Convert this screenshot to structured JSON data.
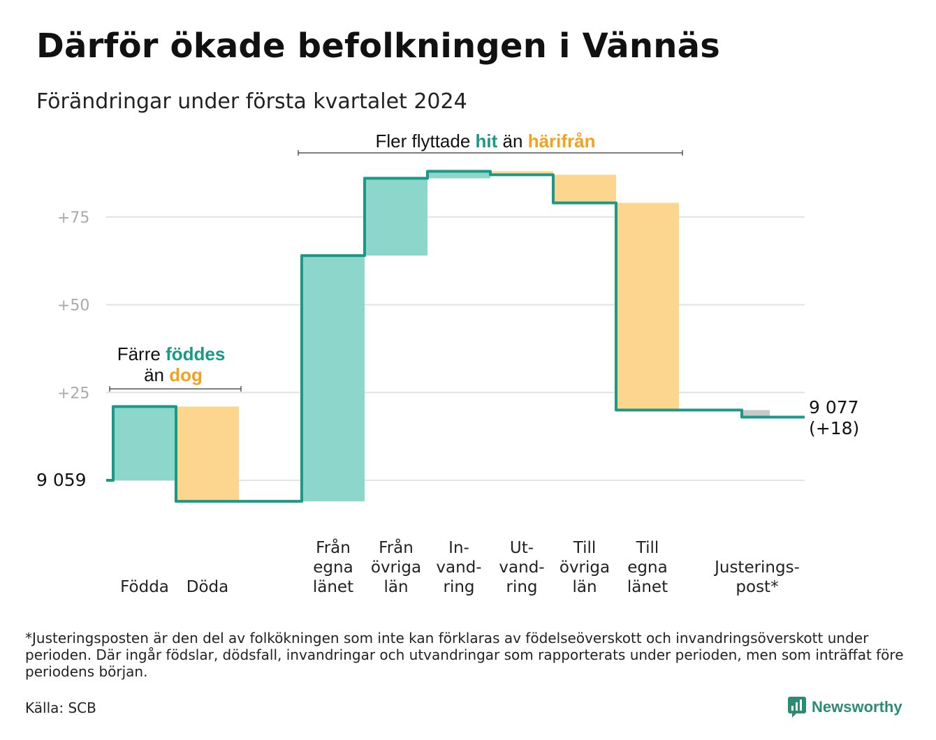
{
  "title": "Därför ökade befolkningen i Vännäs",
  "subtitle": "Förändringar under första kvartalet 2024",
  "chart_data": {
    "type": "waterfall",
    "start_value": 9059,
    "start_label": "9  059",
    "end_value": 9077,
    "end_label_value": "9 077",
    "end_label_change": "(+18)",
    "yticks": [
      {
        "value": 25,
        "label": "+25"
      },
      {
        "value": 50,
        "label": "+50"
      },
      {
        "value": 75,
        "label": "+75"
      }
    ],
    "ylim": [
      -10,
      95
    ],
    "steps": [
      {
        "label_lines": [
          "",
          "",
          "Födda"
        ],
        "value": 21,
        "kind": "in"
      },
      {
        "label_lines": [
          "",
          "",
          "Döda"
        ],
        "value": -27,
        "kind": "out"
      },
      {
        "label_lines": [
          "Från",
          "egna",
          "länet"
        ],
        "value": 70,
        "kind": "in"
      },
      {
        "label_lines": [
          "Från",
          "övriga",
          "län"
        ],
        "value": 22,
        "kind": "in"
      },
      {
        "label_lines": [
          "In-",
          "vand-",
          "ring"
        ],
        "value": 2,
        "kind": "in"
      },
      {
        "label_lines": [
          "Ut-",
          "vand-",
          "ring"
        ],
        "value": -1,
        "kind": "out"
      },
      {
        "label_lines": [
          "Till",
          "övriga",
          "län"
        ],
        "value": -8,
        "kind": "out"
      },
      {
        "label_lines": [
          "Till",
          "egna",
          "länet"
        ],
        "value": -59,
        "kind": "out"
      },
      {
        "label_lines": [
          "",
          "Justerings-",
          "post*"
        ],
        "value": -2,
        "kind": "adjust"
      }
    ],
    "annotations": {
      "births": {
        "prefix": "Färre",
        "teal": "föddes",
        "mid": "än",
        "orange": "dog"
      },
      "migration": {
        "prefix": "Fler flyttade",
        "teal": "hit",
        "mid": "än",
        "orange": "härifrån"
      }
    },
    "colors": {
      "line": "#1a9a86",
      "in_fill": "#8dd6cc",
      "out_fill": "#fcd68e",
      "adjust_fill": "#c9c9c9",
      "grid": "#e3e3e3"
    }
  },
  "footnote": "*Justeringsposten är den del av folkökningen som inte kan förklaras av födelseöverskott och invandringsöverskott under perioden. Där ingår födslar, dödsfall, invandringar och utvandringar som rapporterats under perioden, men som inträffat före periodens början.",
  "source": "Källa: SCB",
  "brand": {
    "name": "Newsworthy",
    "icon": "newsworthy-logo-icon"
  }
}
